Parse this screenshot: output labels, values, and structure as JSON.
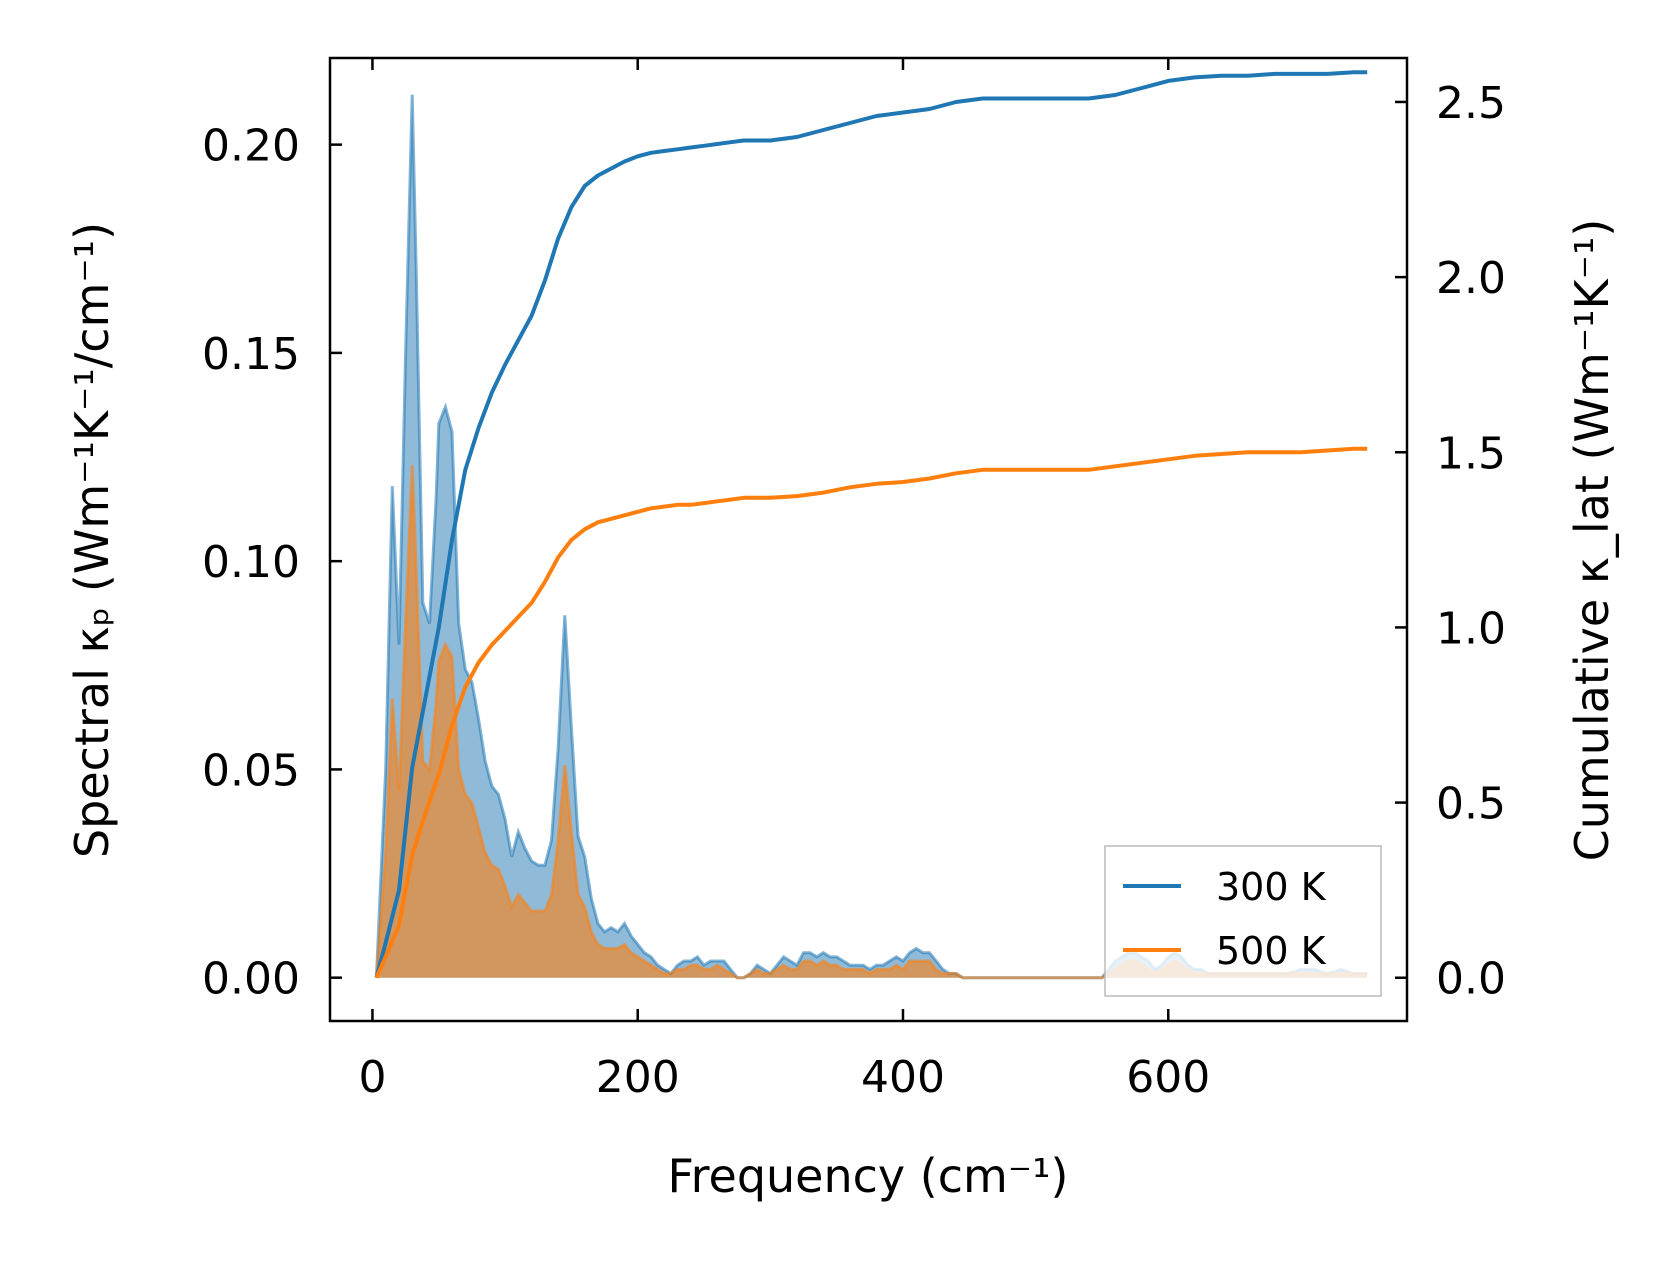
{
  "chart_data": {
    "type": "area+line",
    "title": "",
    "xlabel": "Frequency (cm⁻¹)",
    "ylabel_left": "Spectral κₚ (Wm⁻¹K⁻¹/cm⁻¹)",
    "ylabel_right": "Cumulative κ_lat (Wm⁻¹K⁻¹)",
    "xlim": [
      -32,
      780
    ],
    "ylim_left": [
      -0.0104,
      0.2208
    ],
    "ylim_right": [
      -0.1235,
      2.6255
    ],
    "x_ticks": [
      0,
      200,
      400,
      600
    ],
    "x_tick_labels": [
      "0",
      "200",
      "400",
      "600"
    ],
    "y_left_ticks": [
      0.0,
      0.05,
      0.1,
      0.15,
      0.2
    ],
    "y_left_tick_labels": [
      "0.00",
      "0.05",
      "0.10",
      "0.15",
      "0.20"
    ],
    "y_right_ticks": [
      0.0,
      0.5,
      1.0,
      1.5,
      2.0,
      2.5
    ],
    "y_right_tick_labels": [
      "0.0",
      "0.5",
      "1.0",
      "1.5",
      "2.0",
      "2.5"
    ],
    "legend_position": "lower-right",
    "colors": {
      "series_300": "#1f77b4",
      "series_500": "#ff7f0e"
    },
    "series": [
      {
        "name": "300 K",
        "spectral": {
          "x": [
            3,
            10,
            15,
            20,
            25,
            30,
            33,
            38,
            43,
            48,
            50,
            55,
            60,
            65,
            70,
            75,
            80,
            85,
            90,
            95,
            100,
            105,
            110,
            115,
            120,
            125,
            130,
            135,
            140,
            145,
            150,
            155,
            160,
            165,
            170,
            175,
            180,
            185,
            190,
            195,
            200,
            205,
            210,
            215,
            220,
            225,
            230,
            235,
            240,
            245,
            250,
            255,
            260,
            265,
            270,
            275,
            280,
            285,
            290,
            295,
            300,
            305,
            310,
            315,
            320,
            325,
            330,
            335,
            340,
            345,
            350,
            355,
            360,
            365,
            370,
            375,
            380,
            385,
            390,
            395,
            400,
            405,
            410,
            415,
            420,
            425,
            430,
            435,
            440,
            445,
            450,
            460,
            480,
            500,
            520,
            540,
            550,
            555,
            560,
            565,
            570,
            575,
            580,
            585,
            590,
            595,
            600,
            605,
            610,
            615,
            620,
            625,
            630,
            640,
            650,
            660,
            670,
            680,
            690,
            700,
            710,
            720,
            730,
            740,
            750
          ],
          "y": [
            0.0,
            0.05,
            0.118,
            0.08,
            0.15,
            0.212,
            0.17,
            0.09,
            0.085,
            0.115,
            0.133,
            0.137,
            0.131,
            0.085,
            0.074,
            0.071,
            0.062,
            0.052,
            0.046,
            0.044,
            0.038,
            0.029,
            0.035,
            0.031,
            0.028,
            0.027,
            0.027,
            0.033,
            0.055,
            0.087,
            0.06,
            0.034,
            0.029,
            0.019,
            0.013,
            0.011,
            0.012,
            0.011,
            0.013,
            0.01,
            0.008,
            0.006,
            0.005,
            0.003,
            0.002,
            0.001,
            0.003,
            0.004,
            0.004,
            0.005,
            0.003,
            0.004,
            0.004,
            0.004,
            0.002,
            0.0,
            0.0,
            0.001,
            0.003,
            0.002,
            0.001,
            0.003,
            0.005,
            0.004,
            0.003,
            0.006,
            0.006,
            0.005,
            0.006,
            0.005,
            0.005,
            0.004,
            0.003,
            0.003,
            0.003,
            0.002,
            0.003,
            0.003,
            0.004,
            0.005,
            0.004,
            0.006,
            0.007,
            0.006,
            0.006,
            0.004,
            0.002,
            0.001,
            0.001,
            0.0,
            0.0,
            0.0,
            0.0,
            0.0,
            0.0,
            0.0,
            0.0,
            0.002,
            0.004,
            0.005,
            0.006,
            0.006,
            0.005,
            0.004,
            0.002,
            0.003,
            0.005,
            0.006,
            0.005,
            0.003,
            0.002,
            0.002,
            0.001,
            0.001,
            0.001,
            0.001,
            0.001,
            0.001,
            0.001,
            0.002,
            0.002,
            0.001,
            0.002,
            0.001,
            0.001
          ]
        },
        "cumulative": {
          "x": [
            3,
            10,
            20,
            30,
            40,
            50,
            60,
            70,
            80,
            90,
            100,
            110,
            120,
            130,
            140,
            150,
            160,
            170,
            180,
            190,
            200,
            210,
            220,
            230,
            240,
            250,
            260,
            270,
            280,
            290,
            300,
            320,
            340,
            360,
            380,
            400,
            420,
            440,
            460,
            480,
            500,
            520,
            540,
            560,
            580,
            600,
            620,
            640,
            660,
            680,
            700,
            720,
            740,
            750
          ],
          "y": [
            0.0,
            0.1,
            0.25,
            0.6,
            0.8,
            1.0,
            1.25,
            1.45,
            1.57,
            1.67,
            1.75,
            1.82,
            1.89,
            1.99,
            2.11,
            2.2,
            2.26,
            2.29,
            2.31,
            2.33,
            2.345,
            2.355,
            2.36,
            2.365,
            2.37,
            2.375,
            2.38,
            2.385,
            2.39,
            2.39,
            2.39,
            2.4,
            2.42,
            2.44,
            2.46,
            2.47,
            2.48,
            2.5,
            2.51,
            2.51,
            2.51,
            2.51,
            2.51,
            2.52,
            2.54,
            2.56,
            2.57,
            2.575,
            2.575,
            2.58,
            2.58,
            2.58,
            2.585,
            2.585
          ]
        }
      },
      {
        "name": "500 K",
        "spectral": {
          "x": [
            3,
            10,
            15,
            20,
            25,
            30,
            33,
            38,
            43,
            48,
            50,
            55,
            60,
            65,
            70,
            75,
            80,
            85,
            90,
            95,
            100,
            105,
            110,
            115,
            120,
            125,
            130,
            135,
            140,
            145,
            150,
            155,
            160,
            165,
            170,
            175,
            180,
            185,
            190,
            195,
            200,
            205,
            210,
            215,
            220,
            225,
            230,
            235,
            240,
            245,
            250,
            255,
            260,
            265,
            270,
            275,
            280,
            285,
            290,
            295,
            300,
            305,
            310,
            315,
            320,
            325,
            330,
            335,
            340,
            345,
            350,
            355,
            360,
            365,
            370,
            375,
            380,
            385,
            390,
            395,
            400,
            405,
            410,
            415,
            420,
            425,
            430,
            435,
            440,
            445,
            450,
            460,
            480,
            500,
            520,
            540,
            550,
            555,
            560,
            565,
            570,
            575,
            580,
            585,
            590,
            595,
            600,
            605,
            610,
            615,
            620,
            625,
            630,
            640,
            650,
            660,
            670,
            680,
            690,
            700,
            710,
            720,
            730,
            740,
            750
          ],
          "y": [
            0.0,
            0.03,
            0.067,
            0.045,
            0.085,
            0.123,
            0.098,
            0.052,
            0.05,
            0.066,
            0.076,
            0.08,
            0.077,
            0.05,
            0.044,
            0.042,
            0.036,
            0.03,
            0.027,
            0.026,
            0.022,
            0.017,
            0.02,
            0.018,
            0.016,
            0.016,
            0.016,
            0.02,
            0.033,
            0.051,
            0.035,
            0.02,
            0.017,
            0.011,
            0.008,
            0.007,
            0.007,
            0.007,
            0.008,
            0.006,
            0.005,
            0.004,
            0.003,
            0.002,
            0.001,
            0.001,
            0.002,
            0.002,
            0.003,
            0.003,
            0.002,
            0.002,
            0.003,
            0.002,
            0.001,
            0.0,
            0.0,
            0.001,
            0.002,
            0.001,
            0.001,
            0.002,
            0.003,
            0.002,
            0.002,
            0.004,
            0.004,
            0.003,
            0.004,
            0.003,
            0.003,
            0.002,
            0.002,
            0.002,
            0.002,
            0.001,
            0.002,
            0.002,
            0.002,
            0.003,
            0.002,
            0.004,
            0.004,
            0.004,
            0.004,
            0.002,
            0.001,
            0.001,
            0.001,
            0.0,
            0.0,
            0.0,
            0.0,
            0.0,
            0.0,
            0.0,
            0.0,
            0.001,
            0.002,
            0.003,
            0.004,
            0.004,
            0.003,
            0.002,
            0.001,
            0.002,
            0.003,
            0.004,
            0.003,
            0.002,
            0.001,
            0.001,
            0.001,
            0.001,
            0.001,
            0.001,
            0.001,
            0.001,
            0.001,
            0.001,
            0.001,
            0.001,
            0.001,
            0.001,
            0.001
          ]
        },
        "cumulative": {
          "x": [
            3,
            10,
            20,
            30,
            40,
            50,
            60,
            70,
            80,
            90,
            100,
            110,
            120,
            130,
            140,
            150,
            160,
            170,
            180,
            190,
            200,
            210,
            220,
            230,
            240,
            250,
            260,
            270,
            280,
            290,
            300,
            320,
            340,
            360,
            380,
            400,
            420,
            440,
            460,
            480,
            500,
            520,
            540,
            560,
            580,
            600,
            620,
            640,
            660,
            680,
            700,
            720,
            740,
            750
          ],
          "y": [
            0.0,
            0.06,
            0.15,
            0.35,
            0.47,
            0.58,
            0.72,
            0.83,
            0.9,
            0.95,
            0.99,
            1.03,
            1.07,
            1.13,
            1.2,
            1.25,
            1.28,
            1.3,
            1.31,
            1.32,
            1.33,
            1.34,
            1.345,
            1.35,
            1.35,
            1.355,
            1.36,
            1.365,
            1.37,
            1.37,
            1.37,
            1.375,
            1.385,
            1.4,
            1.41,
            1.415,
            1.425,
            1.44,
            1.45,
            1.45,
            1.45,
            1.45,
            1.45,
            1.46,
            1.47,
            1.48,
            1.49,
            1.495,
            1.5,
            1.5,
            1.5,
            1.505,
            1.51,
            1.51
          ]
        }
      }
    ]
  }
}
